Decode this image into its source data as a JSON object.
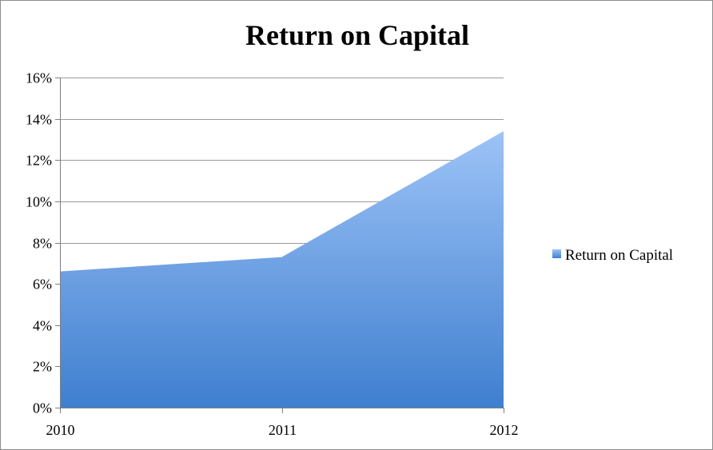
{
  "chart_data": {
    "type": "area",
    "title": "Return on Capital",
    "categories": [
      "2010",
      "2011",
      "2012"
    ],
    "series": [
      {
        "name": "Return on Capital",
        "values": [
          6.6,
          7.3,
          13.4
        ]
      }
    ],
    "ylim": [
      0,
      16
    ],
    "y_ticks": [
      0,
      2,
      4,
      6,
      8,
      10,
      12,
      14,
      16
    ],
    "y_tick_labels": [
      "0%",
      "2%",
      "4%",
      "6%",
      "8%",
      "10%",
      "12%",
      "14%",
      "16%"
    ],
    "xlabel": "",
    "ylabel": "",
    "grid": true,
    "legend_position": "right",
    "colors": {
      "fill_top": "#9dc3f7",
      "fill_bottom": "#3f7fcf",
      "grid": "#9a9a9a",
      "axis": "#7f7f7f",
      "legend_marker_top": "#9dc3f7",
      "legend_marker_bottom": "#3f7fcf"
    }
  }
}
